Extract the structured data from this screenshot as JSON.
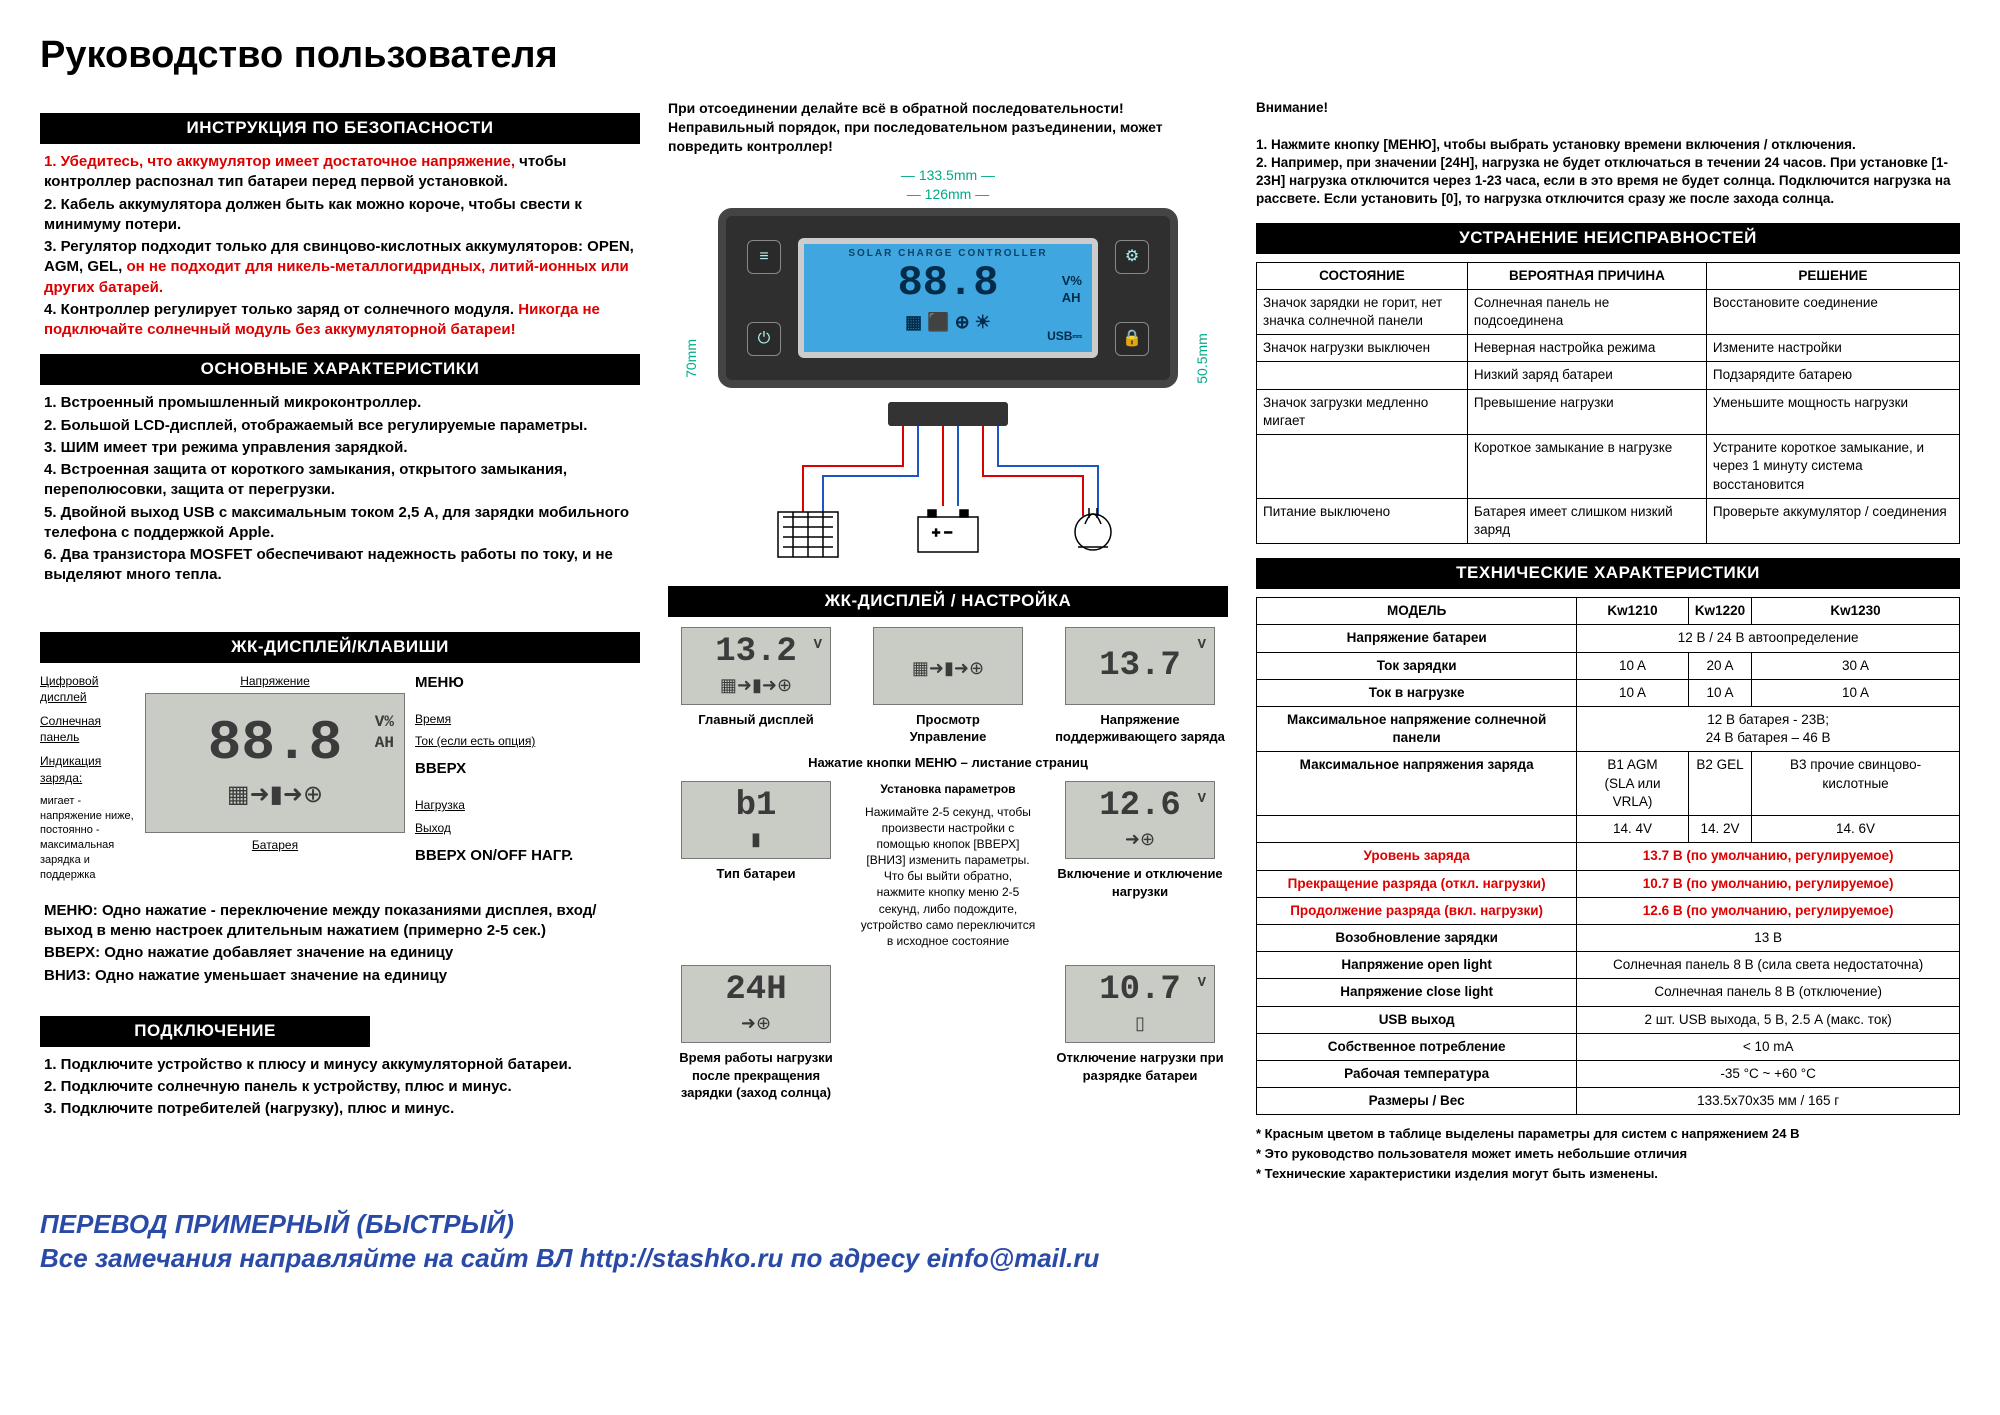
{
  "title": "Руководство пользователя",
  "colors": {
    "warn_red": "#d00",
    "dim_green": "#0a8",
    "footer_blue": "#2a4aa8",
    "screen_blue": "#3fa6e0"
  },
  "safety": {
    "heading": "ИНСТРУКЦИЯ ПО БЕЗОПАСНОСТИ",
    "line1a": "1. Убедитесь, что аккумулятор имеет достаточное напряжение, ",
    "line1b": "чтобы контроллер распознал тип батареи перед первой установкой.",
    "line2": "2. Кабель аккумулятора должен быть как можно короче, чтобы свести к минимуму потери.",
    "line3a": "3. Регулятор подходит только для свинцово-кислотных аккумуляторов: OPEN, AGM, GEL, ",
    "line3b": "он не подходит для никель-металлогидридных, литий-ионных или других батарей.",
    "line4a": "4. Контроллер регулирует только заряд от солнечного модуля. ",
    "line4b": "Никогда не подключайте солнечный модуль без аккумуляторной батареи!"
  },
  "features": {
    "heading": "ОСНОВНЫЕ ХАРАКТЕРИСТИКИ",
    "items": [
      "1. Встроенный промышленный микроконтроллер.",
      "2. Большой LCD-дисплей, отображаемый все регулируемые параметры.",
      "3. ШИМ имеет три режима управления зарядкой.",
      "4. Встроенная защита от короткого замыкания, открытого замыкания, переполюсовки, защита от перегрузки.",
      "5. Двойной выход USB с максимальным током 2,5 А, для зарядки мобильного телефона с поддержкой Apple.",
      "6. Два транзистора MOSFET обеспечивают надежность работы по току, и не выделяют много тепла."
    ]
  },
  "display_keys": {
    "heading": "ЖК-ДИСПЛЕЙ/КЛАВИШИ",
    "left_labels": [
      "Цифровой дисплей",
      "Солнечная панель",
      "Индикация заряда:"
    ],
    "left_note": "мигает - напряжение ниже, постоянно - максимальная зарядка и поддержка",
    "top_label": "Напряжение",
    "battery_label": "Батарея",
    "right_labels": [
      "Время",
      "Ток (если есть опция)",
      "Нагрузка",
      "Выход"
    ],
    "menu_labels": [
      "МЕНЮ",
      "ВВЕРХ",
      "ВВЕРХ ON/OFF НАГР."
    ],
    "digits": "88.8",
    "units": "V%\nAH",
    "glyphs": "▦➜▮➜⊕",
    "foot1": "МЕНЮ: Одно нажатие - переключение между показаниями дисплея, вход/выход в меню настроек длительным нажатием (примерно 2-5 сек.)",
    "foot2": "ВВЕРХ: Одно нажатие добавляет значение на единицу",
    "foot3": "ВНИЗ: Одно нажатие уменьшает значение на единицу"
  },
  "connection": {
    "heading": "ПОДКЛЮЧЕНИЕ",
    "items": [
      "1. Подключите устройство к плюсу и минусу аккумуляторной батареи.",
      "2. Подключите солнечную панель к устройству, плюс и минус.",
      "3. Подключите потребителей (нагрузку), плюс и минус."
    ]
  },
  "mid_top_warn": [
    "При отсоединении делайте всё в обратной последовательности!",
    "Неправильный порядок, при последовательном разъединении, может повредить контроллер!"
  ],
  "device": {
    "dim_w_outer": "133.5mm",
    "dim_w_inner": "126mm",
    "dim_h_left": "70mm",
    "dim_h_right": "50.5mm",
    "screen_title": "SOLAR CHARGE CONTROLLER",
    "screen_digits": "88.8",
    "screen_units": "V%\nAH",
    "screen_glyphs": "▦ ⬛ ⊕ ☀",
    "screen_usb": "USB⎓",
    "btn_icons": [
      "≡",
      "⚙",
      "⏻",
      "🔒"
    ]
  },
  "lcd_heading": "ЖК-ДИСПЛЕЙ / НАСТРОЙКА",
  "lcd_row1": [
    {
      "val": "13.2",
      "unit": "V",
      "glyphs": "▦➜▮➜⊕",
      "caption": "Главный дисплей"
    },
    {
      "val": "",
      "unit": "",
      "glyphs": "▦➜▮➜⊕",
      "caption": "Просмотр\nУправление"
    },
    {
      "val": "13.7",
      "unit": "V",
      "glyphs": "",
      "caption": "Напряжение поддерживающего заряда"
    }
  ],
  "lcd_mid_note": "Нажатие кнопки МЕНЮ – листание страниц",
  "lcd_row2": [
    {
      "val": "b1",
      "unit": "",
      "glyphs": "▮",
      "caption": "Тип батареи"
    },
    {
      "val": "",
      "unit": "",
      "glyphs": "",
      "caption": ""
    },
    {
      "val": "12.6",
      "unit": "V",
      "glyphs": "➜⊕",
      "caption": "Включение и отключение нагрузки"
    }
  ],
  "param_block": {
    "title": "Установка параметров",
    "body": "Нажимайте 2-5 секунд, чтобы произвести настройки с помощью кнопок [ВВЕРХ] [ВНИЗ] изменить параметры. Что бы выйти обратно, нажмите кнопку меню 2-5 секунд, либо подождите, устройство само переключится в исходное состояние"
  },
  "lcd_row3": [
    {
      "val": "24H",
      "unit": "",
      "glyphs": "➜⊕",
      "caption": "Время работы нагрузки после прекращения зарядки (заход солнца)"
    },
    {
      "val": "",
      "unit": "",
      "glyphs": "",
      "caption": ""
    },
    {
      "val": "10.7",
      "unit": "V",
      "glyphs": "▯",
      "caption": "Отключение нагрузки при разрядке батареи"
    }
  ],
  "right_warn": {
    "title": "Внимание!",
    "p1": "1. Нажмите кнопку [МЕНЮ], чтобы выбрать установку времени включения / отключения.",
    "p2": "2. Например, при значении [24H], нагрузка не будет отключаться в течении 24 часов. При установке [1-23H] нагрузка отключится через 1-23 часа, если в это время не будет солнца. Подключится нагрузка на рассвете. Если установить [0], то нагрузка отключится сразу же после захода солнца."
  },
  "trouble": {
    "heading": "УСТРАНЕНИЕ НЕИСПРАВНОСТЕЙ",
    "headers": [
      "СОСТОЯНИЕ",
      "ВЕРОЯТНАЯ ПРИЧИНА",
      "РЕШЕНИЕ"
    ],
    "rows": [
      [
        "Значок зарядки не горит, нет значка солнечной панели",
        "Солнечная панель не подсоединена",
        "Восстановите соединение"
      ],
      [
        "Значок нагрузки выключен",
        "Неверная настройка режима",
        "Измените настройки"
      ],
      [
        "",
        "Низкий заряд батареи",
        "Подзарядите батарею"
      ],
      [
        "Значок загрузки медленно мигает",
        "Превышение нагрузки",
        "Уменьшите мощность нагрузки"
      ],
      [
        "",
        "Короткое замыкание в нагрузке",
        "Устраните короткое замыкание, и через 1 минуту система восстановится"
      ],
      [
        "Питание выключено",
        "Батарея имеет слишком низкий заряд",
        "Проверьте аккумулятор / соединения"
      ]
    ]
  },
  "spec": {
    "heading": "ТЕХНИЧЕСКИЕ ХАРАКТЕРИСТИКИ",
    "header": [
      "МОДЕЛЬ",
      "Kw1210",
      "Kw1220",
      "Kw1230"
    ],
    "rows": [
      {
        "label": "Напряжение батареи",
        "span": "12 В / 24 В автоопределение"
      },
      {
        "label": "Ток зарядки",
        "cells": [
          "10 A",
          "20 A",
          "30 A"
        ]
      },
      {
        "label": "Ток в нагрузке",
        "cells": [
          "10 A",
          "10 A",
          "10 A"
        ]
      },
      {
        "label": "Максимальное напряжение солнечной панели",
        "span": "12 В батарея - 23В;\n24 В батарея – 46 В"
      },
      {
        "label": "Максимальное напряжения заряда",
        "cells": [
          "B1 AGM\n(SLA или VRLA)",
          "B2 GEL",
          "B3 прочие свинцово-кислотные"
        ]
      },
      {
        "label": "",
        "cells": [
          "14. 4V",
          "14. 2V",
          "14. 6V"
        ]
      },
      {
        "label": "Уровень заряда",
        "span": "13.7 В (по умолчанию, регулируемое)",
        "red": true
      },
      {
        "label": "Прекращение разряда (откл. нагрузки)",
        "span": "10.7 В (по умолчанию, регулируемое)",
        "red": true
      },
      {
        "label": "Продолжение разряда (вкл. нагрузки)",
        "span": "12.6 В (по умолчанию, регулируемое)",
        "red": true
      },
      {
        "label": "Возобновление зарядки",
        "span": "13 В"
      },
      {
        "label": "Напряжение open light",
        "span": "Солнечная панель 8 В  (сила света недостаточна)"
      },
      {
        "label": "Напряжение close light",
        "span": "Солнечная панель 8 В  (отключение)"
      },
      {
        "label": "USB выход",
        "span": "2 шт. USB выхода, 5 В, 2.5 A (макс. ток)"
      },
      {
        "label": "Собственное потребление",
        "span": "< 10 mA"
      },
      {
        "label": "Рабочая температура",
        "span": "-35 °C ~ +60 °C"
      },
      {
        "label": "Размеры / Вес",
        "span": "133.5x70x35 мм / 165 г"
      }
    ]
  },
  "footnotes": [
    "* Красным цветом в таблице выделены параметры для систем с напряжением 24 В",
    "* Это руководство пользователя может иметь небольшие отличия",
    "* Технические характеристики изделия могут быть изменены."
  ],
  "footer1": "ПЕРЕВОД ПРИМЕРНЫЙ (БЫСТРЫЙ)",
  "footer2": "Все замечания направляйте на сайт ВЛ http://stashko.ru по адресу einfo@mail.ru"
}
